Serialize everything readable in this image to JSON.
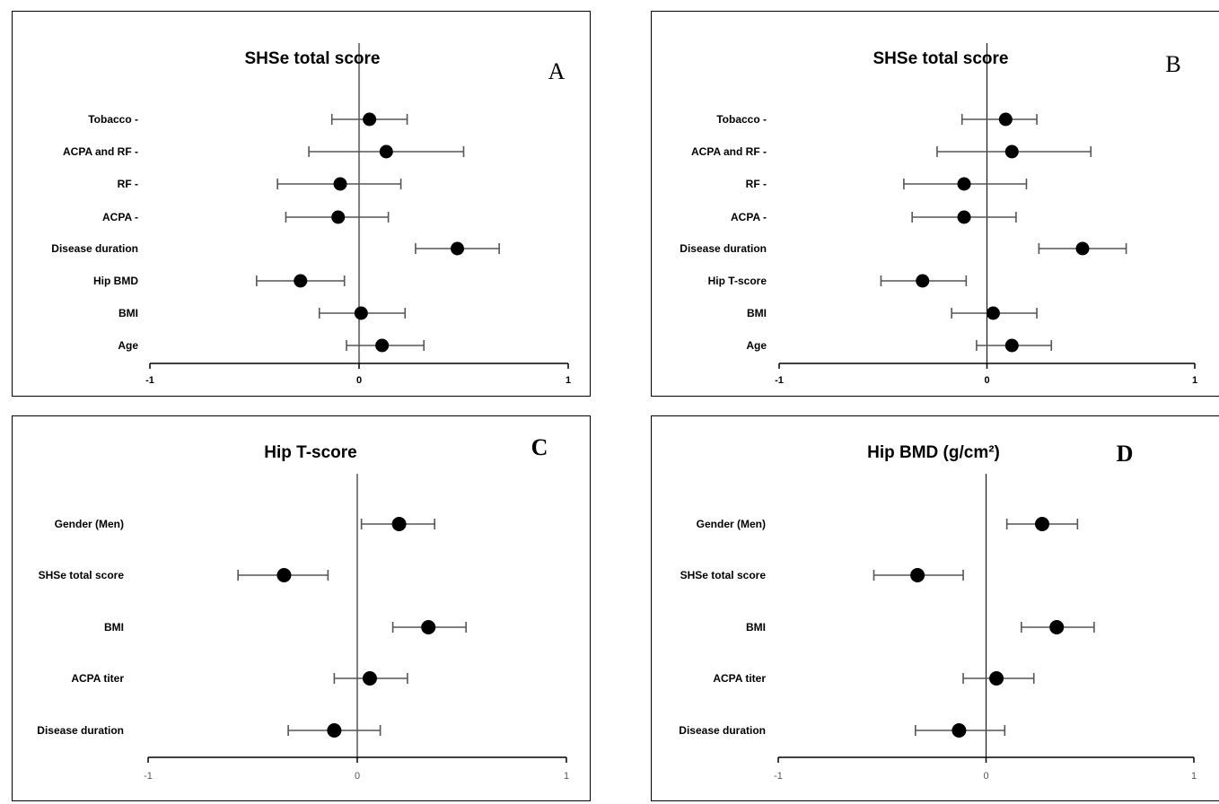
{
  "chart_data": [
    {
      "type": "scatter",
      "panel_label": "A",
      "title": "SHSe total score",
      "xlim": [
        -1,
        1
      ],
      "x_ticks": [
        "-1",
        "0",
        "1"
      ],
      "categories": [
        "Tobacco -",
        "ACPA and RF -",
        "RF -",
        "ACPA -",
        "Disease duration",
        "Hip BMD",
        "BMI",
        "Age"
      ],
      "values": [
        0.05,
        0.13,
        -0.09,
        -0.1,
        0.47,
        -0.28,
        0.01,
        0.11
      ],
      "ci_low": [
        -0.13,
        -0.24,
        -0.39,
        -0.35,
        0.27,
        -0.49,
        -0.19,
        -0.06
      ],
      "ci_high": [
        0.23,
        0.5,
        0.2,
        0.14,
        0.67,
        -0.07,
        0.22,
        0.31
      ]
    },
    {
      "type": "scatter",
      "panel_label": "B",
      "title": "SHSe total score",
      "xlim": [
        -1,
        1
      ],
      "x_ticks": [
        "-1",
        "0",
        "1"
      ],
      "categories": [
        "Tobacco -",
        "ACPA and RF -",
        "RF -",
        "ACPA -",
        "Disease duration",
        "Hip T-score",
        "BMI",
        "Age"
      ],
      "values": [
        0.09,
        0.12,
        -0.11,
        -0.11,
        0.46,
        -0.31,
        0.03,
        0.12
      ],
      "ci_low": [
        -0.12,
        -0.24,
        -0.4,
        -0.36,
        0.25,
        -0.51,
        -0.17,
        -0.05
      ],
      "ci_high": [
        0.24,
        0.5,
        0.19,
        0.14,
        0.67,
        -0.1,
        0.24,
        0.31
      ]
    },
    {
      "type": "scatter",
      "panel_label": "C",
      "title": "Hip T-score",
      "xlim": [
        -1,
        1
      ],
      "x_ticks": [
        "-1",
        "0",
        "1"
      ],
      "categories": [
        "Gender (Men)",
        "SHSe total score",
        "BMI",
        "ACPA titer",
        "Disease duration"
      ],
      "values": [
        0.2,
        -0.35,
        0.34,
        0.06,
        -0.11
      ],
      "ci_low": [
        0.02,
        -0.57,
        0.17,
        -0.11,
        -0.33
      ],
      "ci_high": [
        0.37,
        -0.14,
        0.52,
        0.24,
        0.11
      ]
    },
    {
      "type": "scatter",
      "panel_label": "D",
      "title": "Hip BMD (g/cm²)",
      "xlim": [
        -1,
        1
      ],
      "x_ticks": [
        "-1",
        "0",
        "1"
      ],
      "categories": [
        "Gender (Men)",
        "SHSe total score",
        "BMI",
        "ACPA titer",
        "Disease duration"
      ],
      "values": [
        0.27,
        -0.33,
        0.34,
        0.05,
        -0.13
      ],
      "ci_low": [
        0.1,
        -0.54,
        0.17,
        -0.11,
        -0.34
      ],
      "ci_high": [
        0.44,
        -0.11,
        0.52,
        0.23,
        0.09
      ]
    }
  ]
}
